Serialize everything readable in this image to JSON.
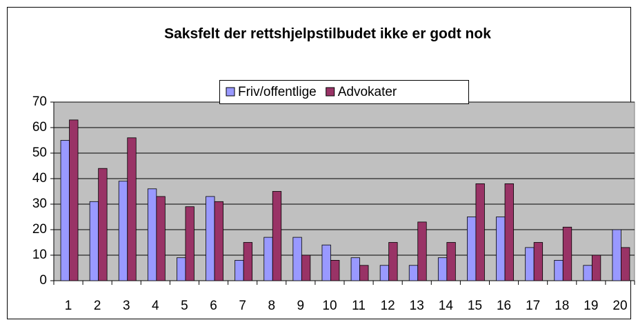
{
  "chart_data": {
    "type": "bar",
    "title": "Saksfelt der rettshjelpstilbudet ikke er godt nok",
    "categories": [
      "1",
      "2",
      "3",
      "4",
      "5",
      "6",
      "7",
      "8",
      "9",
      "10",
      "11",
      "12",
      "13",
      "14",
      "15",
      "16",
      "17",
      "18",
      "19",
      "20"
    ],
    "series": [
      {
        "name": "Friv/offentlige",
        "color": "#9999ff",
        "values": [
          55,
          31,
          39,
          36,
          9,
          33,
          8,
          17,
          17,
          14,
          9,
          6,
          6,
          9,
          25,
          25,
          13,
          8,
          6,
          20
        ]
      },
      {
        "name": "Advokater",
        "color": "#993366",
        "values": [
          63,
          44,
          56,
          33,
          29,
          31,
          15,
          35,
          10,
          8,
          6,
          15,
          23,
          15,
          38,
          38,
          15,
          21,
          10,
          13
        ]
      }
    ],
    "ylim": [
      0,
      70
    ],
    "yticks": [
      0,
      10,
      20,
      30,
      40,
      50,
      60,
      70
    ],
    "grid": true,
    "legend": "top"
  }
}
